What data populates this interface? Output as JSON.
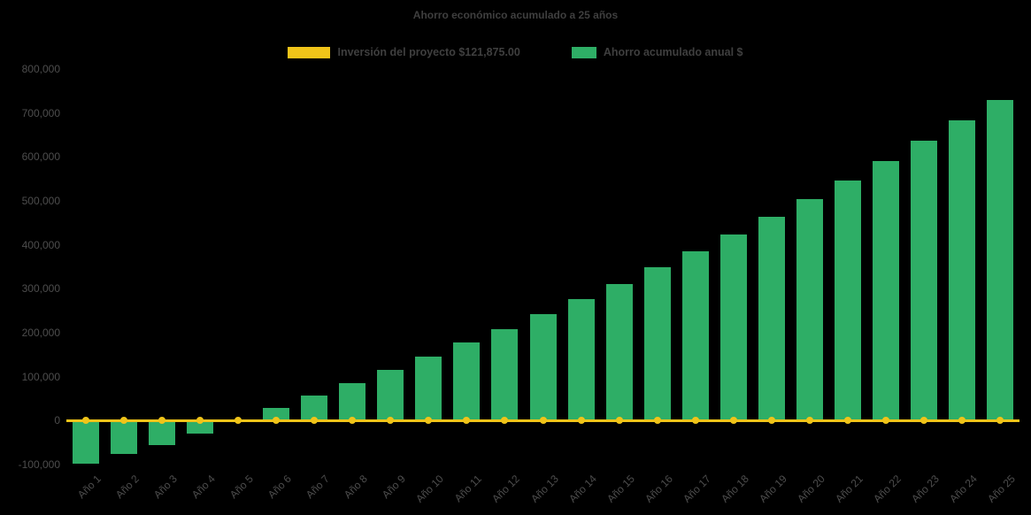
{
  "chart_data": {
    "type": "bar",
    "title": "Ahorro económico acumulado a 25 años",
    "categories": [
      "Año 1",
      "Año 2",
      "Año 3",
      "Año 4",
      "Año 5",
      "Año 6",
      "Año 7",
      "Año 8",
      "Año 9",
      "Año 10",
      "Año 11",
      "Año 12",
      "Año 13",
      "Año 14",
      "Año 15",
      "Año 16",
      "Año 17",
      "Año 18",
      "Año 19",
      "Año 20",
      "Año 21",
      "Año 22",
      "Año 23",
      "Año 24",
      "Año 25"
    ],
    "series": [
      {
        "name": "Inversión del proyecto $121,875.00",
        "type": "line",
        "color": "#F0C419",
        "values": [
          0,
          0,
          0,
          0,
          0,
          0,
          0,
          0,
          0,
          0,
          0,
          0,
          0,
          0,
          0,
          0,
          0,
          0,
          0,
          0,
          0,
          0,
          0,
          0,
          0
        ]
      },
      {
        "name": "Ahorro acumulado anual $",
        "type": "bar",
        "color": "#2EAE66",
        "values": [
          -97000,
          -75000,
          -55000,
          -29000,
          -2000,
          28000,
          57000,
          86000,
          116000,
          146000,
          177000,
          208000,
          242000,
          277000,
          311000,
          348000,
          386000,
          424000,
          463000,
          504000,
          547000,
          590000,
          636000,
          683000,
          729000
        ]
      }
    ],
    "ylim": [
      -100000,
      800000
    ],
    "ytick_step": 100000,
    "ytick_labels_top_to_bottom": [
      "800,000",
      "700,000",
      "600,000",
      "500,000",
      "400,000",
      "300,000",
      "200,000",
      "100,000",
      "0",
      "-100,000"
    ],
    "legend_position": "top",
    "grid": false,
    "background_color": "#000000",
    "text_color": "#4d4d4d",
    "investment_value_shown_in_legend": "$121,875.00"
  }
}
